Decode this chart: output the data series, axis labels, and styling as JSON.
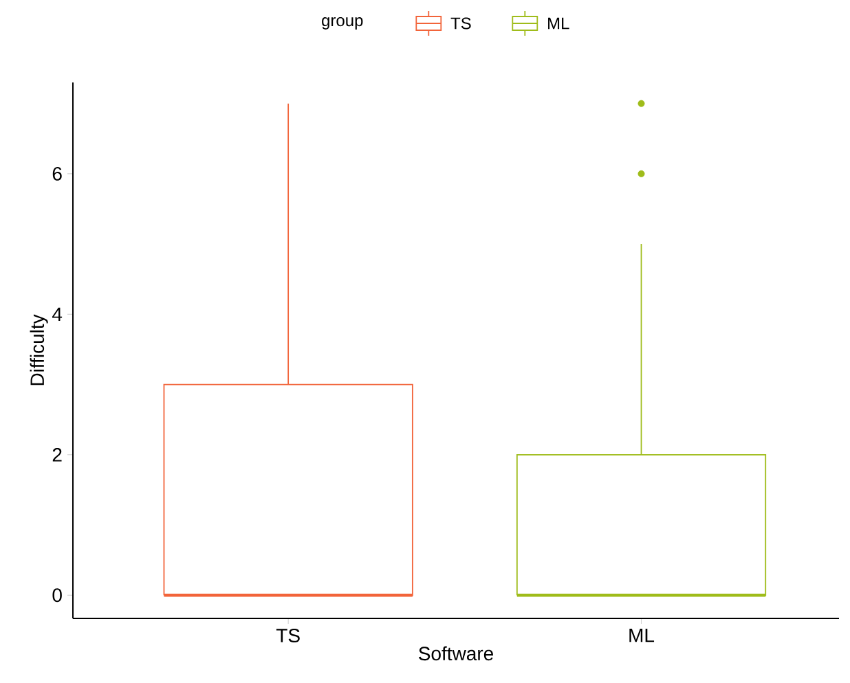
{
  "chart_data": {
    "type": "box",
    "xlabel": "Software",
    "ylabel": "Difficulty",
    "legend_title": "group",
    "legend": "top",
    "grid": false,
    "categories": [
      "TS",
      "ML"
    ],
    "ylim": [
      -0.33,
      7.3
    ],
    "yticks": [
      0,
      2,
      4,
      6
    ],
    "series": [
      {
        "name": "TS",
        "color": "#f2643a",
        "boxes": [
          {
            "low": 0,
            "q1": 0,
            "median": 0,
            "q3": 3,
            "high": 7
          },
          null
        ]
      },
      {
        "name": "ML",
        "color": "#9fbc1a",
        "boxes": [
          null,
          {
            "low": 0,
            "q1": 0,
            "median": 0,
            "q3": 2,
            "high": 5,
            "outliers": [
              6,
              7
            ]
          }
        ]
      }
    ]
  }
}
